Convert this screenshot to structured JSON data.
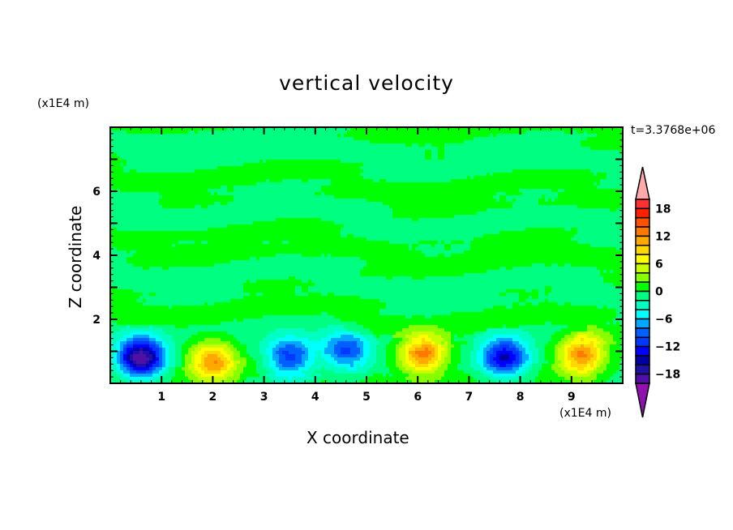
{
  "chart_data": {
    "type": "heatmap",
    "title": "vertical velocity",
    "xlabel": "X coordinate",
    "ylabel": "Z coordinate",
    "x_multiplier": "(x1E4 m)",
    "y_multiplier": "(x1E4 m)",
    "time_label": "t=3.3768e+06",
    "xlim": [
      0,
      10
    ],
    "ylim": [
      0,
      8
    ],
    "x_ticks": [
      "1",
      "2",
      "3",
      "4",
      "5",
      "6",
      "7",
      "8",
      "9"
    ],
    "y_ticks": [
      "2",
      "4",
      "6"
    ],
    "grid": false,
    "colorbar": {
      "levels_min": -20,
      "levels_max": 20,
      "step": 2,
      "tick_labels": [
        "18",
        "12",
        "6",
        "0",
        "-6",
        "-12",
        "-18"
      ],
      "colors_top_to_bottom": [
        "#ff3030",
        "#ff2000",
        "#ff5000",
        "#ff7800",
        "#ffa800",
        "#ffd800",
        "#ffff00",
        "#c8ff00",
        "#88ff00",
        "#00ff00",
        "#00ff80",
        "#00ffc0",
        "#00ffff",
        "#00a8ff",
        "#0060ff",
        "#0038ff",
        "#0000ff",
        "#0000a8",
        "#2010a8",
        "#5010a8"
      ],
      "over_color": "#ffaaaa",
      "under_color": "#9010b0"
    },
    "cells": [
      {
        "x": 0.6,
        "z": 0.8,
        "value": -19
      },
      {
        "x": 2.0,
        "z": 0.7,
        "value": 12
      },
      {
        "x": 3.5,
        "z": 0.8,
        "value": -11
      },
      {
        "x": 4.6,
        "z": 1.0,
        "value": -10
      },
      {
        "x": 6.1,
        "z": 0.9,
        "value": 13
      },
      {
        "x": 7.7,
        "z": 0.8,
        "value": -14
      },
      {
        "x": 9.2,
        "z": 0.9,
        "value": 13
      }
    ]
  }
}
